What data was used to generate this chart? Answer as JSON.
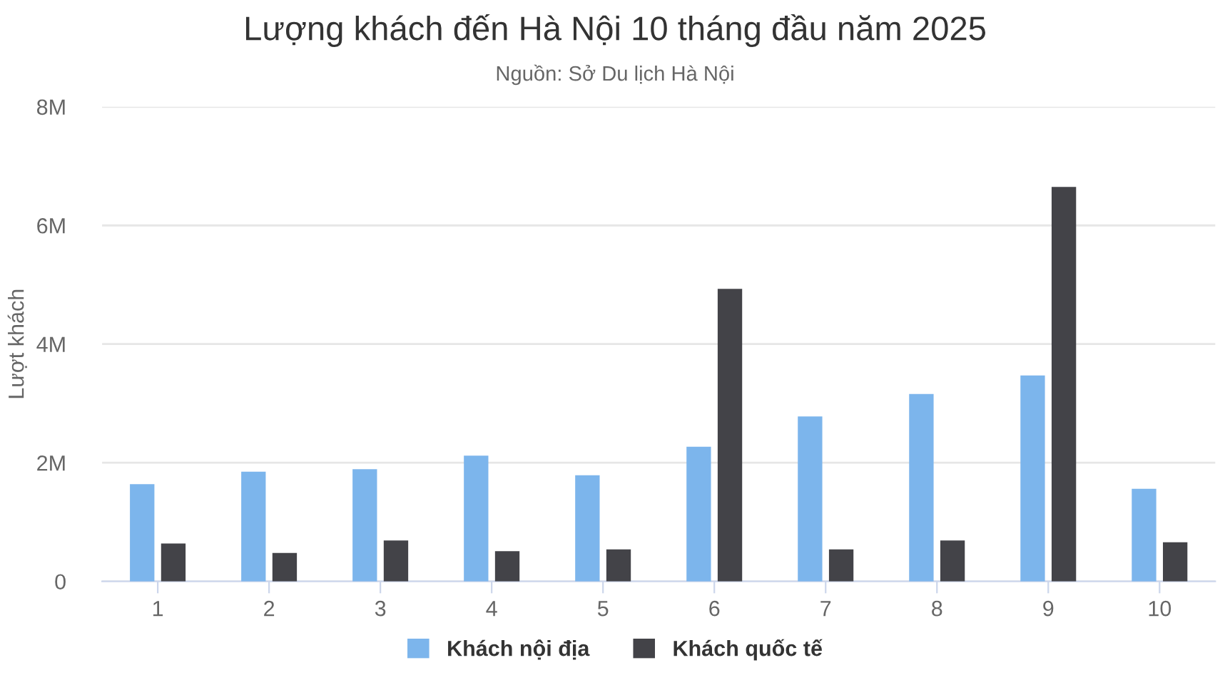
{
  "chart_data": {
    "type": "bar",
    "title": "Lượng khách đến Hà Nội 10 tháng đầu năm 2025",
    "subtitle": "Nguồn: Sở Du lịch Hà Nội",
    "ylabel": "Lượt khách",
    "categories": [
      "1",
      "2",
      "3",
      "4",
      "5",
      "6",
      "7",
      "8",
      "9",
      "10"
    ],
    "series": [
      {
        "name": "Khách nội địa",
        "color": "#7cb5ec",
        "values": [
          1.64,
          1.85,
          1.89,
          2.12,
          1.79,
          2.27,
          2.78,
          3.16,
          3.47,
          1.56
        ]
      },
      {
        "name": "Khách quốc tế",
        "color": "#434348",
        "values": [
          0.64,
          0.48,
          0.69,
          0.51,
          0.54,
          4.93,
          0.54,
          0.69,
          6.65,
          0.66
        ]
      }
    ],
    "ylim": [
      0,
      8
    ],
    "yticks": [
      0,
      {
        "value": 2,
        "label": "2M"
      },
      {
        "value": 4,
        "label": "4M"
      },
      {
        "value": 6,
        "label": "6M"
      },
      {
        "value": 8,
        "label": "8M"
      }
    ],
    "grid": "y",
    "legend": "bottom"
  }
}
